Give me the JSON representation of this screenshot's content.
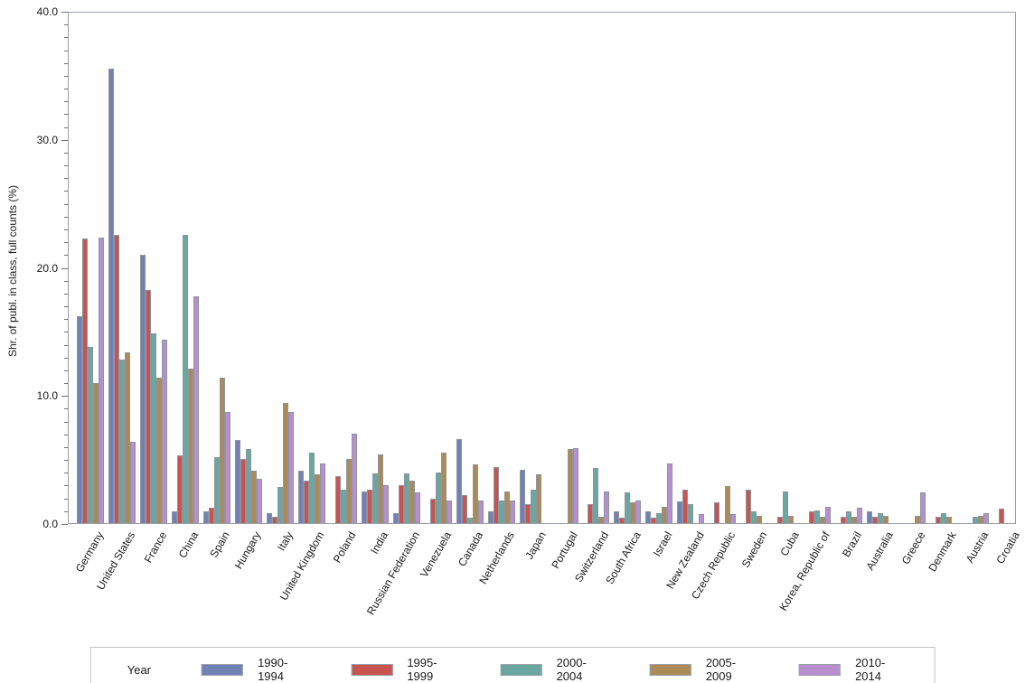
{
  "chart_data": {
    "type": "bar",
    "title": "",
    "xlabel": "",
    "ylabel": "Shr. of publ. in class, full counts (%)",
    "ylim": [
      0,
      40
    ],
    "y_major_tick_step": 10,
    "y_minor_tick_step": 1,
    "y_tick_labels": [
      "0.0",
      "10.0",
      "20.0",
      "30.0",
      "40.0"
    ],
    "grid": false,
    "legend_position": "bottom",
    "legend_title": "Year",
    "categories": [
      "Germany",
      "United States",
      "France",
      "China",
      "Spain",
      "Hungary",
      "Italy",
      "United Kingdom",
      "Poland",
      "India",
      "Russian Federation",
      "Venezuela",
      "Canada",
      "Netherlands",
      "Japan",
      "Portugal",
      "Switzerland",
      "South Africa",
      "Israel",
      "New Zealand",
      "Czech Republic",
      "Sweden",
      "Cuba",
      "Korea, Republic of",
      "Brazil",
      "Australia",
      "Greece",
      "Denmark",
      "Austria",
      "Croatia"
    ],
    "series": [
      {
        "name": "1990-1994",
        "color": "#7181b4",
        "values": [
          16.2,
          35.6,
          21.0,
          0.9,
          0.9,
          6.5,
          0.8,
          4.1,
          null,
          2.5,
          0.8,
          null,
          6.6,
          0.9,
          4.2,
          null,
          null,
          0.9,
          0.9,
          1.7,
          null,
          null,
          null,
          null,
          null,
          0.9,
          null,
          null,
          null,
          null
        ]
      },
      {
        "name": "1995-1999",
        "color": "#c75450",
        "values": [
          22.3,
          22.6,
          18.3,
          5.3,
          1.2,
          5.0,
          0.5,
          3.3,
          3.7,
          2.6,
          3.0,
          1.9,
          2.2,
          4.4,
          1.5,
          null,
          1.5,
          0.4,
          0.4,
          2.6,
          1.6,
          2.6,
          0.5,
          0.9,
          0.5,
          0.5,
          null,
          0.5,
          null,
          1.1
        ]
      },
      {
        "name": "2000-2004",
        "color": "#6aa7a0",
        "values": [
          13.8,
          12.8,
          14.9,
          22.6,
          5.2,
          5.8,
          2.8,
          5.5,
          2.6,
          3.9,
          3.9,
          4.0,
          0.4,
          1.8,
          2.6,
          null,
          4.3,
          2.4,
          0.8,
          1.5,
          null,
          0.9,
          2.5,
          1.0,
          0.9,
          0.8,
          null,
          0.8,
          0.5,
          null
        ]
      },
      {
        "name": "2005-2009",
        "color": "#ab8a5a",
        "values": [
          11.0,
          13.4,
          11.4,
          12.1,
          11.4,
          4.1,
          9.4,
          3.8,
          5.0,
          5.4,
          3.3,
          5.5,
          4.6,
          2.5,
          3.8,
          5.8,
          0.5,
          1.6,
          1.3,
          null,
          2.9,
          0.6,
          0.6,
          0.5,
          0.5,
          0.6,
          0.6,
          0.5,
          0.6,
          null
        ]
      },
      {
        "name": "2010-2014",
        "color": "#b78fce",
        "values": [
          22.4,
          6.4,
          14.4,
          17.8,
          8.7,
          3.5,
          8.7,
          4.7,
          7.0,
          3.0,
          2.4,
          1.8,
          1.8,
          1.8,
          null,
          5.9,
          2.5,
          1.8,
          4.7,
          0.7,
          0.7,
          null,
          null,
          1.3,
          1.2,
          null,
          2.4,
          null,
          0.8,
          null
        ]
      }
    ]
  }
}
